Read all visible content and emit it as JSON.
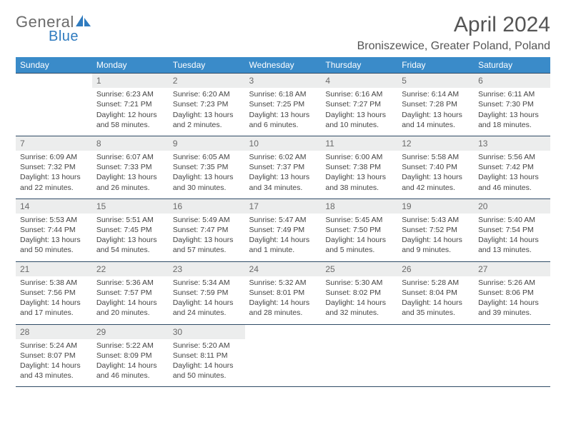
{
  "logo": {
    "text1": "General",
    "text2": "Blue"
  },
  "title": "April 2024",
  "location": "Broniszewice, Greater Poland, Poland",
  "headers": [
    "Sunday",
    "Monday",
    "Tuesday",
    "Wednesday",
    "Thursday",
    "Friday",
    "Saturday"
  ],
  "colors": {
    "headerBg": "#3a8bc9",
    "dayBg": "#eceded",
    "borderTop": "#2f4b66",
    "logoBlue": "#2f7bbf"
  },
  "weeks": [
    [
      {
        "day": "",
        "sunrise": "",
        "sunset": "",
        "daylight": ""
      },
      {
        "day": "1",
        "sunrise": "Sunrise: 6:23 AM",
        "sunset": "Sunset: 7:21 PM",
        "daylight": "Daylight: 12 hours and 58 minutes."
      },
      {
        "day": "2",
        "sunrise": "Sunrise: 6:20 AM",
        "sunset": "Sunset: 7:23 PM",
        "daylight": "Daylight: 13 hours and 2 minutes."
      },
      {
        "day": "3",
        "sunrise": "Sunrise: 6:18 AM",
        "sunset": "Sunset: 7:25 PM",
        "daylight": "Daylight: 13 hours and 6 minutes."
      },
      {
        "day": "4",
        "sunrise": "Sunrise: 6:16 AM",
        "sunset": "Sunset: 7:27 PM",
        "daylight": "Daylight: 13 hours and 10 minutes."
      },
      {
        "day": "5",
        "sunrise": "Sunrise: 6:14 AM",
        "sunset": "Sunset: 7:28 PM",
        "daylight": "Daylight: 13 hours and 14 minutes."
      },
      {
        "day": "6",
        "sunrise": "Sunrise: 6:11 AM",
        "sunset": "Sunset: 7:30 PM",
        "daylight": "Daylight: 13 hours and 18 minutes."
      }
    ],
    [
      {
        "day": "7",
        "sunrise": "Sunrise: 6:09 AM",
        "sunset": "Sunset: 7:32 PM",
        "daylight": "Daylight: 13 hours and 22 minutes."
      },
      {
        "day": "8",
        "sunrise": "Sunrise: 6:07 AM",
        "sunset": "Sunset: 7:33 PM",
        "daylight": "Daylight: 13 hours and 26 minutes."
      },
      {
        "day": "9",
        "sunrise": "Sunrise: 6:05 AM",
        "sunset": "Sunset: 7:35 PM",
        "daylight": "Daylight: 13 hours and 30 minutes."
      },
      {
        "day": "10",
        "sunrise": "Sunrise: 6:02 AM",
        "sunset": "Sunset: 7:37 PM",
        "daylight": "Daylight: 13 hours and 34 minutes."
      },
      {
        "day": "11",
        "sunrise": "Sunrise: 6:00 AM",
        "sunset": "Sunset: 7:38 PM",
        "daylight": "Daylight: 13 hours and 38 minutes."
      },
      {
        "day": "12",
        "sunrise": "Sunrise: 5:58 AM",
        "sunset": "Sunset: 7:40 PM",
        "daylight": "Daylight: 13 hours and 42 minutes."
      },
      {
        "day": "13",
        "sunrise": "Sunrise: 5:56 AM",
        "sunset": "Sunset: 7:42 PM",
        "daylight": "Daylight: 13 hours and 46 minutes."
      }
    ],
    [
      {
        "day": "14",
        "sunrise": "Sunrise: 5:53 AM",
        "sunset": "Sunset: 7:44 PM",
        "daylight": "Daylight: 13 hours and 50 minutes."
      },
      {
        "day": "15",
        "sunrise": "Sunrise: 5:51 AM",
        "sunset": "Sunset: 7:45 PM",
        "daylight": "Daylight: 13 hours and 54 minutes."
      },
      {
        "day": "16",
        "sunrise": "Sunrise: 5:49 AM",
        "sunset": "Sunset: 7:47 PM",
        "daylight": "Daylight: 13 hours and 57 minutes."
      },
      {
        "day": "17",
        "sunrise": "Sunrise: 5:47 AM",
        "sunset": "Sunset: 7:49 PM",
        "daylight": "Daylight: 14 hours and 1 minute."
      },
      {
        "day": "18",
        "sunrise": "Sunrise: 5:45 AM",
        "sunset": "Sunset: 7:50 PM",
        "daylight": "Daylight: 14 hours and 5 minutes."
      },
      {
        "day": "19",
        "sunrise": "Sunrise: 5:43 AM",
        "sunset": "Sunset: 7:52 PM",
        "daylight": "Daylight: 14 hours and 9 minutes."
      },
      {
        "day": "20",
        "sunrise": "Sunrise: 5:40 AM",
        "sunset": "Sunset: 7:54 PM",
        "daylight": "Daylight: 14 hours and 13 minutes."
      }
    ],
    [
      {
        "day": "21",
        "sunrise": "Sunrise: 5:38 AM",
        "sunset": "Sunset: 7:56 PM",
        "daylight": "Daylight: 14 hours and 17 minutes."
      },
      {
        "day": "22",
        "sunrise": "Sunrise: 5:36 AM",
        "sunset": "Sunset: 7:57 PM",
        "daylight": "Daylight: 14 hours and 20 minutes."
      },
      {
        "day": "23",
        "sunrise": "Sunrise: 5:34 AM",
        "sunset": "Sunset: 7:59 PM",
        "daylight": "Daylight: 14 hours and 24 minutes."
      },
      {
        "day": "24",
        "sunrise": "Sunrise: 5:32 AM",
        "sunset": "Sunset: 8:01 PM",
        "daylight": "Daylight: 14 hours and 28 minutes."
      },
      {
        "day": "25",
        "sunrise": "Sunrise: 5:30 AM",
        "sunset": "Sunset: 8:02 PM",
        "daylight": "Daylight: 14 hours and 32 minutes."
      },
      {
        "day": "26",
        "sunrise": "Sunrise: 5:28 AM",
        "sunset": "Sunset: 8:04 PM",
        "daylight": "Daylight: 14 hours and 35 minutes."
      },
      {
        "day": "27",
        "sunrise": "Sunrise: 5:26 AM",
        "sunset": "Sunset: 8:06 PM",
        "daylight": "Daylight: 14 hours and 39 minutes."
      }
    ],
    [
      {
        "day": "28",
        "sunrise": "Sunrise: 5:24 AM",
        "sunset": "Sunset: 8:07 PM",
        "daylight": "Daylight: 14 hours and 43 minutes."
      },
      {
        "day": "29",
        "sunrise": "Sunrise: 5:22 AM",
        "sunset": "Sunset: 8:09 PM",
        "daylight": "Daylight: 14 hours and 46 minutes."
      },
      {
        "day": "30",
        "sunrise": "Sunrise: 5:20 AM",
        "sunset": "Sunset: 8:11 PM",
        "daylight": "Daylight: 14 hours and 50 minutes."
      },
      {
        "day": "",
        "sunrise": "",
        "sunset": "",
        "daylight": ""
      },
      {
        "day": "",
        "sunrise": "",
        "sunset": "",
        "daylight": ""
      },
      {
        "day": "",
        "sunrise": "",
        "sunset": "",
        "daylight": ""
      },
      {
        "day": "",
        "sunrise": "",
        "sunset": "",
        "daylight": ""
      }
    ]
  ]
}
